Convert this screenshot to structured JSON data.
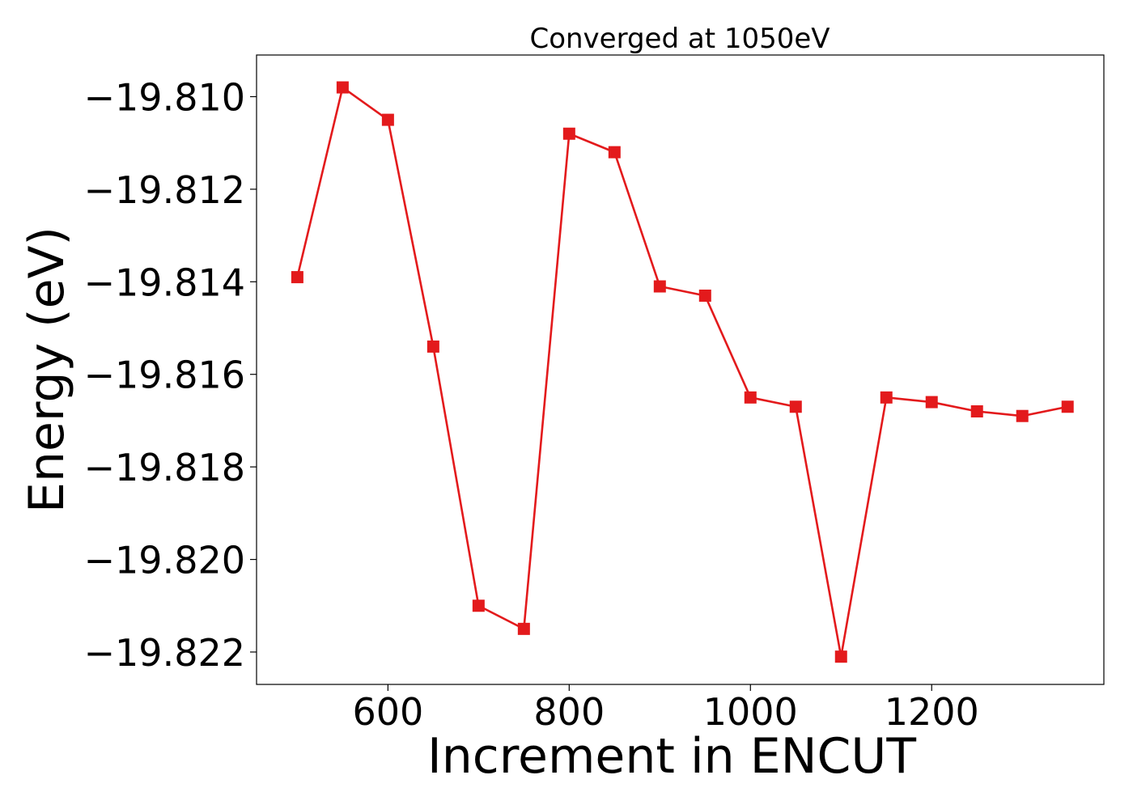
{
  "chart_data": {
    "type": "line",
    "title": "Converged at 1050eV",
    "xlabel": "Increment in ENCUT",
    "ylabel": "Energy (eV)",
    "xlim": [
      455,
      1390
    ],
    "ylim": [
      -19.8227,
      -19.8091
    ],
    "xticks": [
      600,
      800,
      1000,
      1200
    ],
    "yticks": [
      -19.81,
      -19.812,
      -19.814,
      -19.816,
      -19.818,
      -19.82,
      -19.822
    ],
    "ytick_labels": [
      "−19.810",
      "−19.812",
      "−19.814",
      "−19.816",
      "−19.818",
      "−19.820",
      "−19.822"
    ],
    "grid": false,
    "series": [
      {
        "color": "#e31a1c",
        "marker": "square",
        "points": [
          {
            "x": 500,
            "y": -19.8139
          },
          {
            "x": 550,
            "y": -19.8098
          },
          {
            "x": 600,
            "y": -19.8105
          },
          {
            "x": 650,
            "y": -19.8154
          },
          {
            "x": 700,
            "y": -19.821
          },
          {
            "x": 750,
            "y": -19.8215
          },
          {
            "x": 800,
            "y": -19.8108
          },
          {
            "x": 850,
            "y": -19.8112
          },
          {
            "x": 900,
            "y": -19.8141
          },
          {
            "x": 950,
            "y": -19.8143
          },
          {
            "x": 1000,
            "y": -19.8165
          },
          {
            "x": 1050,
            "y": -19.8167
          },
          {
            "x": 1100,
            "y": -19.8221
          },
          {
            "x": 1150,
            "y": -19.8165
          },
          {
            "x": 1200,
            "y": -19.8166
          },
          {
            "x": 1250,
            "y": -19.8168
          },
          {
            "x": 1300,
            "y": -19.8169
          },
          {
            "x": 1350,
            "y": -19.8167
          }
        ]
      }
    ]
  }
}
